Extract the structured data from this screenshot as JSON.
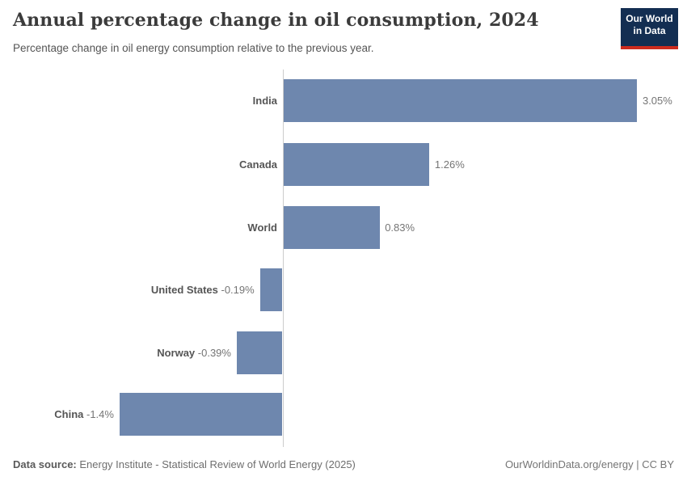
{
  "header": {
    "title": "Annual percentage change in oil consumption, 2024",
    "subtitle": "Percentage change in oil energy consumption relative to the previous year.",
    "logo": {
      "line1": "Our World",
      "line2": "in Data"
    }
  },
  "chart_data": {
    "type": "bar",
    "orientation": "horizontal",
    "title": "Annual percentage change in oil consumption, 2024",
    "categories": [
      "India",
      "Canada",
      "World",
      "United States",
      "Norway",
      "China"
    ],
    "values": [
      3.05,
      1.26,
      0.83,
      -0.19,
      -0.39,
      -1.4
    ],
    "value_labels": [
      "3.05%",
      "1.26%",
      "0.83%",
      "-0.19%",
      "-0.39%",
      "-1.4%"
    ],
    "xlim": [
      -1.4,
      3.05
    ],
    "grid": false,
    "legend": "none",
    "bar_color": "#6e87ae",
    "axis_color": "#cccccc"
  },
  "footer": {
    "datasource_label": "Data source:",
    "datasource_value": " Energy Institute - Statistical Review of World Energy (2025)",
    "credit": "OurWorldinData.org/energy | CC BY"
  }
}
